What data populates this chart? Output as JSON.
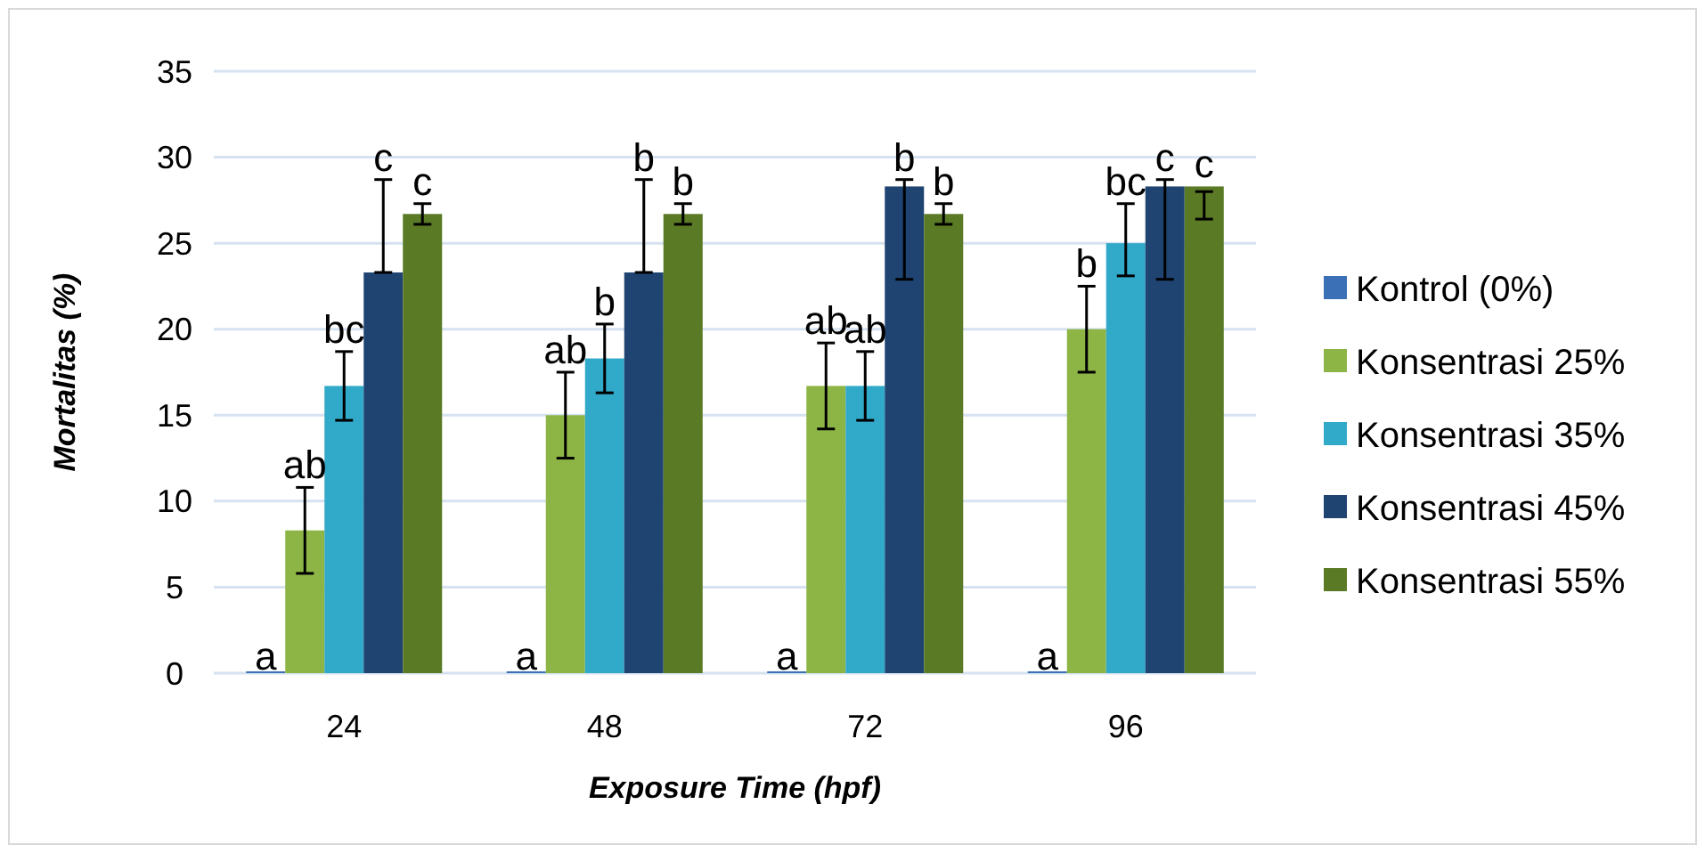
{
  "chart_data": {
    "type": "bar",
    "xlabel": "Exposure Time (hpf)",
    "ylabel": "Mortalitas (%)",
    "categories": [
      "24",
      "48",
      "72",
      "96"
    ],
    "ylim": [
      0,
      35
    ],
    "yticks": [
      0,
      5,
      10,
      15,
      20,
      25,
      30,
      35
    ],
    "grid": "y",
    "legend": "right",
    "series": [
      {
        "name": "Kontrol (0%)",
        "color": "#3b6fb6",
        "values": [
          0,
          0,
          0,
          0
        ],
        "value_labels": [
          "a",
          "a",
          "a",
          "a"
        ]
      },
      {
        "name": "Konsentrasi 25%",
        "color": "#8db545",
        "values": [
          8.3,
          15,
          16.7,
          20
        ],
        "errors": [
          2.5,
          2.5,
          2.5,
          2.5
        ],
        "value_labels": [
          "ab",
          "ab",
          "ab",
          "b"
        ]
      },
      {
        "name": "Konsentrasi 35%",
        "color": "#31a9c9",
        "values": [
          16.7,
          18.3,
          16.7,
          25
        ],
        "errors": [
          2,
          2,
          2,
          [
            23.1,
            27.3
          ]
        ],
        "value_labels": [
          "bc",
          "b",
          "ab",
          "bc"
        ]
      },
      {
        "name": "Konsentrasi 45%",
        "color": "#1f4472",
        "values": [
          23.3,
          23.3,
          28.3,
          28.3
        ],
        "errors": [
          [
            23.3,
            28.7
          ],
          [
            23.3,
            28.7
          ],
          [
            22.9,
            28.7
          ],
          [
            22.9,
            28.7
          ]
        ],
        "value_labels": [
          "c",
          "b",
          "b",
          "c"
        ]
      },
      {
        "name": "Konsentrasi 55%",
        "color": "#5a7a25",
        "values": [
          26.7,
          26.7,
          26.7,
          28.3
        ],
        "errors": [
          0.6,
          0.6,
          0.6,
          [
            26.4,
            28
          ]
        ],
        "value_labels": [
          "c",
          "b",
          "b",
          "c"
        ]
      }
    ]
  }
}
